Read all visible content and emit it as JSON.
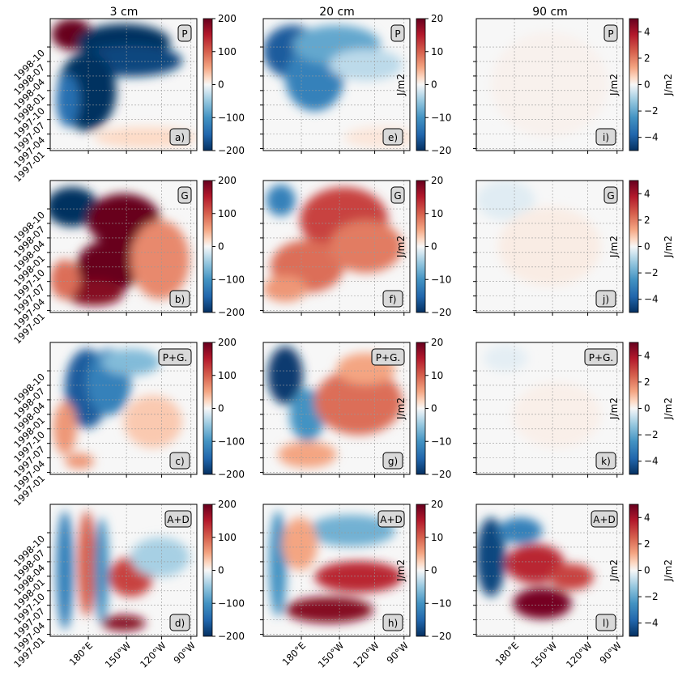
{
  "chart_data": {
    "type": "heatmap",
    "column_titles": [
      "3 cm",
      "20 cm",
      "90 cm"
    ],
    "row_terms": [
      "P",
      "G",
      "P+G.",
      "A+D"
    ],
    "panel_letters": [
      "a)",
      "b)",
      "c)",
      "d)",
      "e)",
      "f)",
      "g)",
      "h)",
      "i)",
      "j)",
      "k)",
      "l)"
    ],
    "x_ticks": [
      "180°E",
      "150°W",
      "120°W",
      "90°W"
    ],
    "y_ticks": [
      "1997-01",
      "1997-04",
      "1997-07",
      "1997-10",
      "1998-01",
      "1998-04",
      "1998-07",
      "1998-10"
    ],
    "colorbar_unit": "J/m2",
    "colormap": "RdBu_r",
    "colorbars": [
      {
        "column": "3 cm",
        "ticks": [
          "200",
          "100",
          "0",
          "−100",
          "−200"
        ],
        "range": [
          -200,
          200
        ]
      },
      {
        "column": "20 cm",
        "ticks": [
          "20",
          "10",
          "0",
          "−10",
          "−20"
        ],
        "range": [
          -20,
          20
        ]
      },
      {
        "column": "90 cm",
        "ticks": [
          "4",
          "2",
          "0",
          "−2",
          "−4"
        ],
        "range": [
          -5,
          5
        ]
      }
    ],
    "grid": true
  }
}
